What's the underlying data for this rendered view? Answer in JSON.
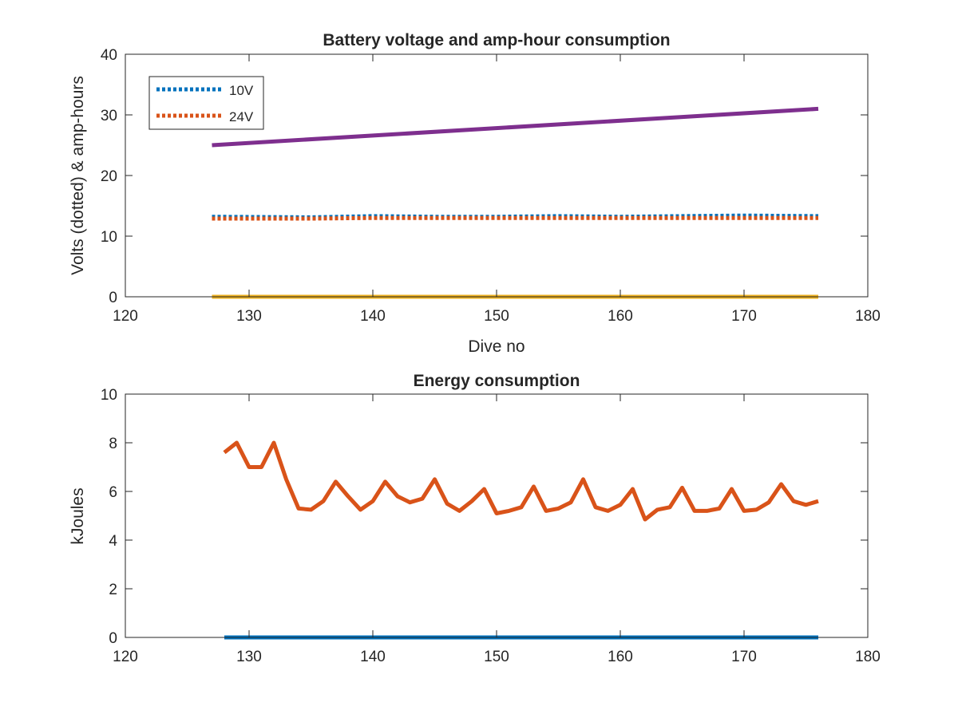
{
  "chart_data": [
    {
      "type": "line",
      "title": "Battery voltage and amp-hour consumption",
      "xlabel": "Dive no",
      "ylabel": "Volts (dotted) & amp-hours",
      "xlim": [
        120,
        180
      ],
      "ylim": [
        0,
        40
      ],
      "xticks": [
        120,
        130,
        140,
        150,
        160,
        170,
        180
      ],
      "yticks": [
        0,
        10,
        20,
        30,
        40
      ],
      "grid": false,
      "legend": {
        "position": "top-left",
        "entries": [
          "10V",
          "24V"
        ]
      },
      "series": [
        {
          "name": "10V",
          "style": "dotted",
          "color": "#0072BD",
          "x": [
            127,
            135,
            140,
            145,
            150,
            155,
            160,
            165,
            170,
            176
          ],
          "y": [
            13.2,
            13.1,
            13.3,
            13.2,
            13.2,
            13.3,
            13.2,
            13.3,
            13.4,
            13.3
          ]
        },
        {
          "name": "24V",
          "style": "dotted",
          "color": "#D95319",
          "x": [
            127,
            135,
            140,
            145,
            150,
            155,
            160,
            165,
            170,
            176
          ],
          "y": [
            12.9,
            12.9,
            13.0,
            13.0,
            13.0,
            13.0,
            13.0,
            13.0,
            13.0,
            13.0
          ]
        },
        {
          "style": "solid",
          "color": "#7E2F8E",
          "x": [
            127,
            176
          ],
          "y": [
            25,
            31
          ]
        },
        {
          "style": "solid",
          "color": "#EDB120",
          "x": [
            127,
            176
          ],
          "y": [
            0,
            0
          ]
        }
      ]
    },
    {
      "type": "line",
      "title": "Energy consumption",
      "xlabel": "",
      "ylabel": "kJoules",
      "xlim": [
        120,
        180
      ],
      "ylim": [
        0,
        10
      ],
      "xticks": [
        120,
        130,
        140,
        150,
        160,
        170,
        180
      ],
      "yticks": [
        0,
        2,
        4,
        6,
        8,
        10
      ],
      "grid": false,
      "series": [
        {
          "style": "solid",
          "color": "#D95319",
          "x": [
            128,
            129,
            130,
            131,
            132,
            133,
            134,
            135,
            136,
            137,
            138,
            139,
            140,
            141,
            142,
            143,
            144,
            145,
            146,
            147,
            148,
            149,
            150,
            151,
            152,
            153,
            154,
            155,
            156,
            157,
            158,
            159,
            160,
            161,
            162,
            163,
            164,
            165,
            166,
            167,
            168,
            169,
            170,
            171,
            172,
            173,
            174,
            175,
            176
          ],
          "y": [
            7.6,
            8.0,
            7.0,
            7.0,
            8.0,
            6.5,
            5.3,
            5.25,
            5.6,
            6.4,
            5.8,
            5.25,
            5.6,
            6.4,
            5.8,
            5.55,
            5.7,
            6.5,
            5.5,
            5.2,
            5.6,
            6.1,
            5.1,
            5.2,
            5.35,
            6.2,
            5.2,
            5.3,
            5.55,
            6.5,
            5.35,
            5.2,
            5.45,
            6.1,
            4.85,
            5.25,
            5.35,
            6.15,
            5.2,
            5.2,
            5.3,
            6.1,
            5.2,
            5.25,
            5.55,
            6.3,
            5.6,
            5.45,
            5.6
          ]
        },
        {
          "style": "solid",
          "color": "#0072BD",
          "x": [
            128,
            176
          ],
          "y": [
            0,
            0
          ]
        }
      ]
    }
  ]
}
